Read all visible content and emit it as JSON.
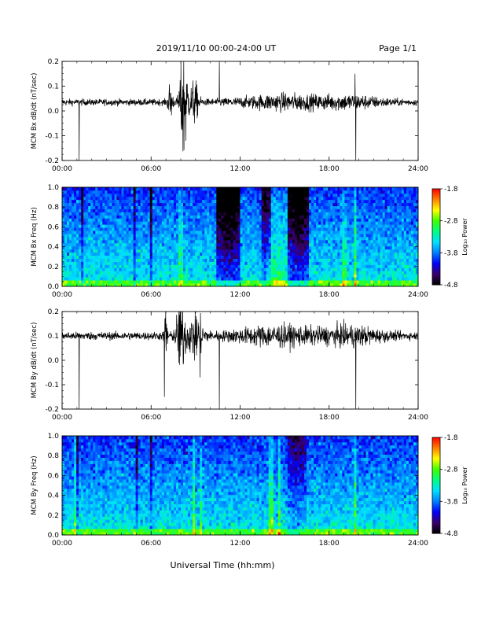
{
  "header": {
    "title": "2019/11/10  00:00-24:00 UT",
    "page": "Page 1/1"
  },
  "footer": {
    "xlabel": "Universal Time (hh:mm)"
  },
  "colorbar": {
    "label": "Log₁₀ Power",
    "ticks": [
      "-1.8",
      "-2.8",
      "-3.8",
      "-4.8"
    ],
    "range": [
      -4.8,
      -1.8
    ],
    "colormap": [
      "#000000",
      "#3a006a",
      "#0000ff",
      "#0080ff",
      "#00e0ff",
      "#00ff80",
      "#40ff00",
      "#ffff00",
      "#ff8000",
      "#ff0000"
    ]
  },
  "xticks": [
    "00:00",
    "06:00",
    "12:00",
    "18:00",
    "24:00"
  ],
  "chart_data": [
    {
      "type": "line",
      "ylabel": "MCM Bx dB/dt (nT/sec)",
      "xlim": [
        0,
        24
      ],
      "ylim": [
        -0.2,
        0.2
      ],
      "yticks": [
        "0.2",
        "0.1",
        "0.0",
        "-0.1",
        "-0.2"
      ],
      "baseline": 0.035,
      "noise": 0.008,
      "bursts": [
        {
          "t": 8.2,
          "width": 0.25,
          "amp": 0.16
        },
        {
          "t": 7.3,
          "width": 0.15,
          "amp": 0.05
        },
        {
          "t": 8.9,
          "width": 0.3,
          "amp": 0.05
        },
        {
          "t": 15.0,
          "width": 3.0,
          "amp": 0.015
        },
        {
          "t": 19.5,
          "width": 2.0,
          "amp": 0.012
        }
      ],
      "spikes": [
        {
          "t": 1.15,
          "y": -0.2
        },
        {
          "t": 10.6,
          "y": 0.2
        },
        {
          "t": 19.8,
          "y": -0.2
        },
        {
          "t": 19.75,
          "y": 0.15
        }
      ]
    },
    {
      "type": "heatmap",
      "ylabel": "MCM Bx Freq (Hz)",
      "xlim": [
        0,
        24
      ],
      "ylim": [
        0,
        1.0
      ],
      "yticks": [
        "1.0",
        "0.8",
        "0.6",
        "0.4",
        "0.2",
        "0.0"
      ],
      "zrange": [
        -4.8,
        -1.8
      ],
      "dark_bands": [
        {
          "t": 11.2,
          "width": 1.6,
          "depth": 0.9
        },
        {
          "t": 15.9,
          "width": 1.4,
          "depth": 0.85
        },
        {
          "t": 13.8,
          "width": 0.6,
          "depth": 0.6
        },
        {
          "t": 1.4,
          "width": 0.2,
          "depth": 0.5
        },
        {
          "t": 4.95,
          "width": 0.15,
          "depth": 0.6
        },
        {
          "t": 6.0,
          "width": 0.15,
          "depth": 0.6
        }
      ],
      "bright_bands": [
        {
          "t": 19.7,
          "width": 0.15,
          "level": 0.8
        },
        {
          "t": 19.0,
          "width": 0.3,
          "level": 0.45
        },
        {
          "t": 8.0,
          "width": 0.4,
          "level": 0.4
        },
        {
          "t": 14.5,
          "width": 1.5,
          "level": 0.3
        }
      ]
    },
    {
      "type": "line",
      "ylabel": "MCM By dB/dt (nT/sec)",
      "xlim": [
        0,
        24
      ],
      "ylim": [
        -0.2,
        0.2
      ],
      "yticks": [
        "0.2",
        "0.1",
        "0.0",
        "-0.1",
        "-0.2"
      ],
      "baseline": 0.1,
      "noise": 0.01,
      "bursts": [
        {
          "t": 8.0,
          "width": 0.3,
          "amp": 0.1
        },
        {
          "t": 7.0,
          "width": 0.1,
          "amp": 0.09
        },
        {
          "t": 9.0,
          "width": 0.5,
          "amp": 0.06
        },
        {
          "t": 14.5,
          "width": 3.0,
          "amp": 0.02
        },
        {
          "t": 19.5,
          "width": 2.0,
          "amp": 0.018
        }
      ],
      "spikes": [
        {
          "t": 1.15,
          "y": -0.2
        },
        {
          "t": 10.6,
          "y": -0.2
        },
        {
          "t": 19.8,
          "y": -0.2
        },
        {
          "t": 6.9,
          "y": -0.15
        },
        {
          "t": 9.3,
          "y": -0.07
        }
      ]
    },
    {
      "type": "heatmap",
      "ylabel": "MCM By Freq (Hz)",
      "xlim": [
        0,
        24
      ],
      "ylim": [
        0,
        1.0
      ],
      "yticks": [
        "1.0",
        "0.8",
        "0.6",
        "0.4",
        "0.2",
        "0.0"
      ],
      "zrange": [
        -4.8,
        -1.8
      ],
      "dark_bands": [
        {
          "t": 5.0,
          "width": 0.2,
          "depth": 0.5
        },
        {
          "t": 6.0,
          "width": 0.2,
          "depth": 0.4
        },
        {
          "t": 15.8,
          "width": 1.2,
          "depth": 0.35
        },
        {
          "t": 1.0,
          "width": 0.2,
          "depth": 0.35
        }
      ],
      "bright_bands": [
        {
          "t": 0.9,
          "width": 0.1,
          "level": 0.5
        },
        {
          "t": 8.9,
          "width": 0.12,
          "level": 0.6
        },
        {
          "t": 9.4,
          "width": 0.1,
          "level": 0.5
        },
        {
          "t": 14.1,
          "width": 0.2,
          "level": 0.65
        },
        {
          "t": 14.6,
          "width": 0.15,
          "level": 0.6
        },
        {
          "t": 19.7,
          "width": 0.15,
          "level": 0.7
        }
      ]
    }
  ]
}
